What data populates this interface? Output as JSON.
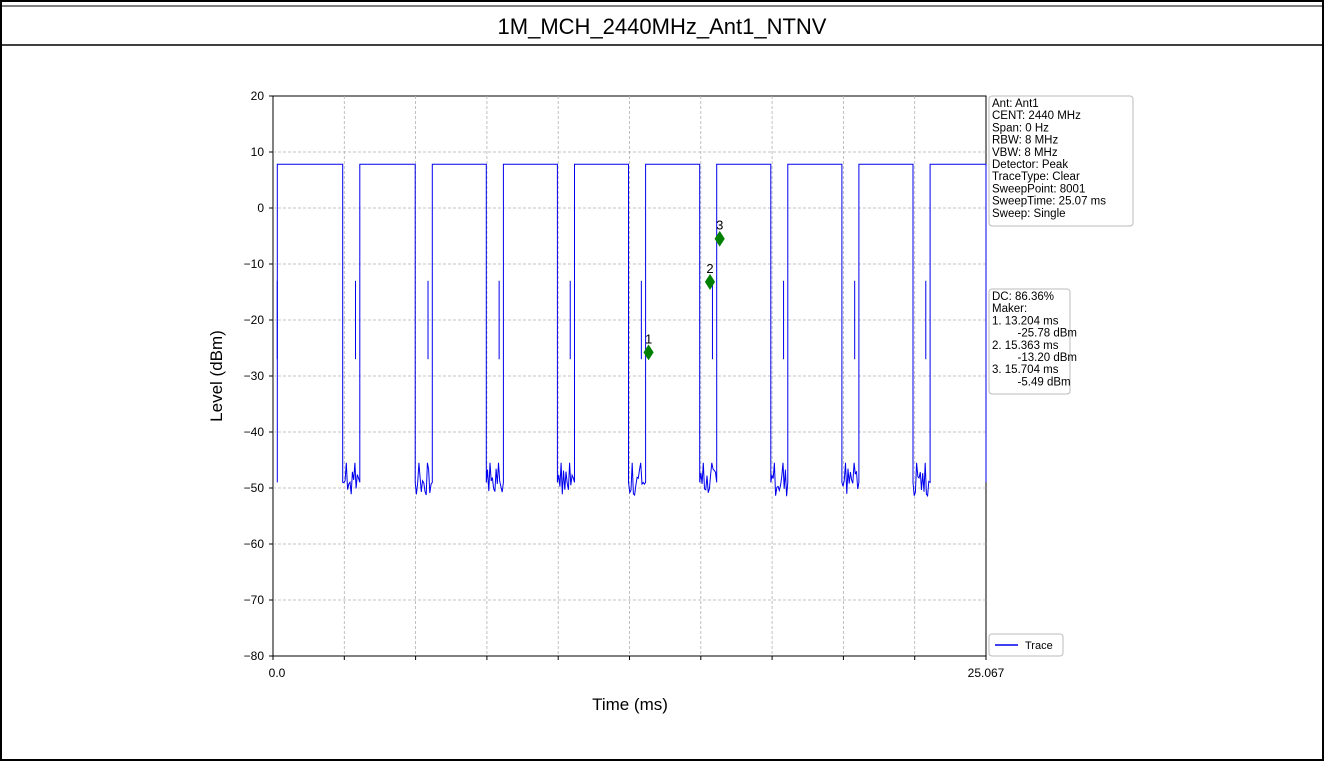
{
  "chart_data": {
    "type": "line",
    "title": "1M_MCH_2440MHz_Ant1_NTNV",
    "xlabel": "Time (ms)",
    "ylabel": "Level (dBm)",
    "xlim": [
      0.0,
      25.067
    ],
    "ylim": [
      -80,
      20
    ],
    "x_tick_labels": [
      "0.0",
      "25.067"
    ],
    "y_ticks": [
      20,
      10,
      0,
      -10,
      -20,
      -30,
      -40,
      -50,
      -60,
      -70,
      -80
    ],
    "y_tick_labels": [
      "20",
      "10",
      "0",
      "−10",
      "−20",
      "−30",
      "−40",
      "−50",
      "−60",
      "−70",
      "−80"
    ],
    "grid": true,
    "legend_placement": "bottom-right",
    "trace_color": "#0000ee",
    "marker_color": "#008000",
    "series": [
      {
        "name": "Trace",
        "on_level": 7.8,
        "off_level": -49,
        "on_intervals": [
          [
            0.15,
            2.45
          ],
          [
            3.05,
            5.0
          ],
          [
            5.6,
            7.5
          ],
          [
            8.1,
            10.0
          ],
          [
            10.6,
            12.5
          ],
          [
            13.1,
            15.0
          ],
          [
            15.6,
            17.5
          ],
          [
            18.1,
            20.0
          ],
          [
            20.6,
            22.5
          ],
          [
            23.1,
            25.067
          ]
        ],
        "spike_times": [
          0.15,
          2.9,
          5.45,
          7.95,
          10.45,
          12.95,
          15.45,
          17.95,
          20.45,
          22.95
        ]
      }
    ],
    "markers": [
      {
        "label": "1",
        "x": 13.204,
        "y": -25.78
      },
      {
        "label": "2",
        "x": 15.363,
        "y": -13.2
      },
      {
        "label": "3",
        "x": 15.704,
        "y": -5.49
      }
    ],
    "info_lines": [
      "Ant: Ant1",
      "CENT: 2440 MHz",
      "Span: 0 Hz",
      "RBW: 8 MHz",
      "VBW: 8 MHz",
      "Detector: Peak",
      "TraceType: Clear",
      "SweepPoint: 8001",
      "SweepTime: 25.07 ms",
      "Sweep: Single"
    ],
    "marker_lines": [
      "DC: 86.36%",
      "Maker:",
      "1. 13.204 ms",
      "    -25.78 dBm",
      "2. 15.363 ms",
      "    -13.20 dBm",
      "3. 15.704 ms",
      "    -5.49 dBm"
    ],
    "legend_label": "Trace"
  }
}
